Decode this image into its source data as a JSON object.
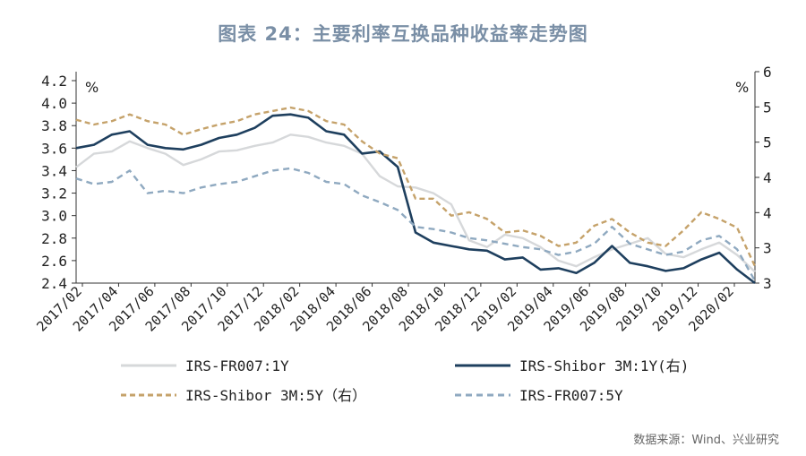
{
  "title": "图表 24：主要利率互换品种收益率走势图",
  "source": "数据来源：Wind、兴业研究",
  "chart_data": {
    "type": "line",
    "left_axis": {
      "unit": "%",
      "ylim": [
        2.4,
        4.2
      ],
      "ticks": [
        "4.2",
        "4.0",
        "3.8",
        "3.6",
        "3.4",
        "3.2",
        "3.0",
        "2.8",
        "2.6",
        "2.4"
      ]
    },
    "right_axis": {
      "unit": "%",
      "ylim": [
        3,
        6
      ],
      "ticks": [
        "6",
        "5",
        "5",
        "4",
        "4",
        "3",
        "3"
      ]
    },
    "x_tick_labels": [
      "2017/02",
      "2017/04",
      "2017/06",
      "2017/08",
      "2017/10",
      "2017/12",
      "2018/02",
      "2018/04",
      "2018/06",
      "2018/08",
      "2018/10",
      "2018/12",
      "2019/02",
      "2019/04",
      "2019/06",
      "2019/08",
      "2019/10",
      "2019/12",
      "2020/02"
    ],
    "x": [
      0,
      1,
      2,
      3,
      4,
      5,
      6,
      7,
      8,
      9,
      10,
      11,
      12,
      13,
      14,
      15,
      16,
      17,
      18,
      19,
      20,
      21,
      22,
      23,
      24,
      25,
      26,
      27,
      28,
      29,
      30,
      31,
      32,
      33,
      34,
      35,
      36,
      37,
      38
    ],
    "series": [
      {
        "name": "IRS-FR007:1Y",
        "axis": "left",
        "color": "#d6d8da",
        "dash": "",
        "values": [
          3.43,
          3.55,
          3.57,
          3.66,
          3.6,
          3.55,
          3.45,
          3.5,
          3.57,
          3.58,
          3.62,
          3.65,
          3.72,
          3.7,
          3.65,
          3.62,
          3.55,
          3.35,
          3.26,
          3.25,
          3.2,
          3.1,
          2.78,
          2.72,
          2.83,
          2.8,
          2.72,
          2.6,
          2.55,
          2.63,
          2.7,
          2.75,
          2.8,
          2.66,
          2.63,
          2.7,
          2.76,
          2.65,
          2.5
        ]
      },
      {
        "name": "IRS-Shibor 3M:1Y(右)",
        "axis": "right",
        "color": "#1e3f5e",
        "dash": "",
        "values": [
          5.0,
          5.05,
          5.2,
          5.25,
          5.05,
          5.0,
          4.98,
          5.05,
          5.15,
          5.2,
          5.3,
          5.48,
          5.5,
          5.45,
          5.25,
          5.2,
          4.92,
          4.95,
          4.72,
          3.75,
          3.6,
          3.55,
          3.5,
          3.48,
          3.35,
          3.38,
          3.2,
          3.22,
          3.15,
          3.3,
          3.55,
          3.3,
          3.25,
          3.18,
          3.22,
          3.35,
          3.45,
          3.2,
          3.0
        ]
      },
      {
        "name": "IRS-Shibor 3M:5Y（右）",
        "axis": "right",
        "color": "#c5a26a",
        "dash": "6 4",
        "values": [
          5.42,
          5.35,
          5.4,
          5.5,
          5.4,
          5.35,
          5.2,
          5.28,
          5.35,
          5.4,
          5.5,
          5.55,
          5.6,
          5.55,
          5.4,
          5.35,
          5.1,
          4.92,
          4.85,
          4.25,
          4.25,
          4.0,
          4.05,
          3.95,
          3.75,
          3.78,
          3.7,
          3.55,
          3.6,
          3.85,
          3.95,
          3.75,
          3.6,
          3.55,
          3.78,
          4.05,
          3.95,
          3.82,
          3.25
        ]
      },
      {
        "name": "IRS-FR007:5Y",
        "axis": "left",
        "color": "#8fa9c0",
        "dash": "7 5",
        "values": [
          3.33,
          3.28,
          3.3,
          3.4,
          3.2,
          3.22,
          3.2,
          3.25,
          3.28,
          3.3,
          3.35,
          3.4,
          3.42,
          3.38,
          3.3,
          3.28,
          3.18,
          3.12,
          3.05,
          2.9,
          2.88,
          2.85,
          2.8,
          2.78,
          2.75,
          2.72,
          2.7,
          2.65,
          2.68,
          2.75,
          2.9,
          2.75,
          2.7,
          2.65,
          2.68,
          2.78,
          2.82,
          2.7,
          2.42
        ]
      }
    ],
    "legend_placement": "bottom",
    "grid": false
  }
}
